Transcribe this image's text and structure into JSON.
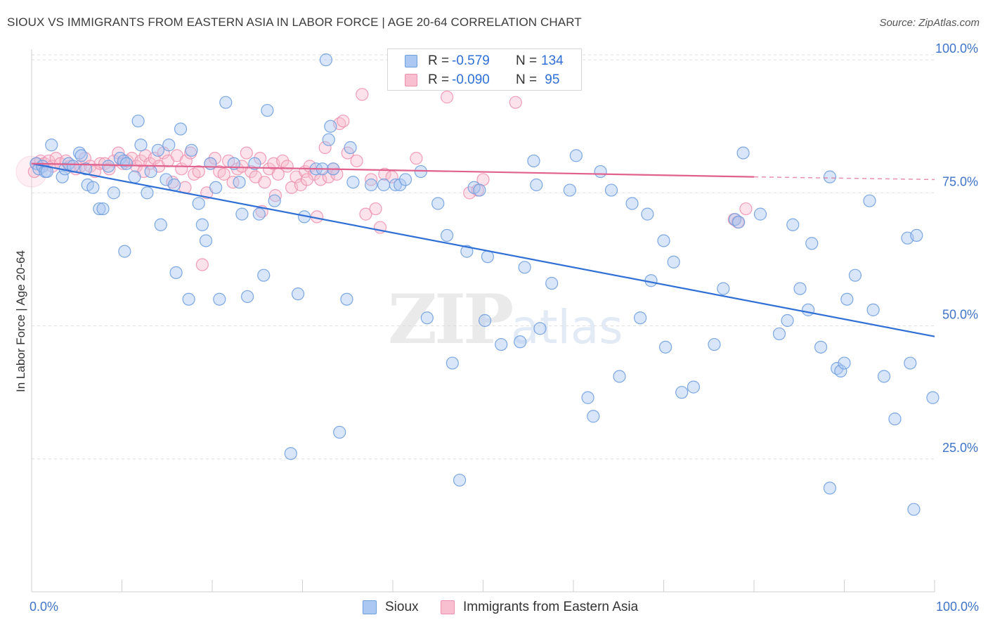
{
  "header": {
    "title": "SIOUX VS IMMIGRANTS FROM EASTERN ASIA IN LABOR FORCE | AGE 20-64 CORRELATION CHART",
    "source": "Source: ZipAtlas.com"
  },
  "watermark": {
    "zip": "ZIP",
    "atlas": "atlas"
  },
  "legend_top": {
    "rows": [
      {
        "r_label": "R =",
        "r_value": "-0.579",
        "n_label": "N =",
        "n_value": "134"
      },
      {
        "r_label": "R =",
        "r_value": "-0.090",
        "n_label": "N =",
        "n_value": " 95"
      }
    ]
  },
  "legend_bottom": {
    "items": [
      {
        "label": "Sioux"
      },
      {
        "label": "Immigrants from Eastern Asia"
      }
    ]
  },
  "colors": {
    "sioux_fill": "#aac8f2",
    "sioux_stroke": "#6f9ee0",
    "sioux_line": "#2f6fd6",
    "asia_fill": "#f8bfd0",
    "asia_stroke": "#ee8ead",
    "asia_line": "#e0618d",
    "grid": "#dddddd",
    "tick_text": "#3f74c9"
  },
  "chart_data": {
    "type": "scatter",
    "title": "SIOUX VS IMMIGRANTS FROM EASTERN ASIA IN LABOR FORCE | AGE 20-64 CORRELATION CHART",
    "xlabel": "",
    "ylabel": "In Labor Force | Age 20-64",
    "xlim": [
      0,
      100
    ],
    "ylim": [
      0,
      102
    ],
    "x_tick_labels": [
      "0.0%",
      "100.0%"
    ],
    "y_ticks": [
      25,
      50,
      75,
      100
    ],
    "y_tick_labels": [
      "25.0%",
      "50.0%",
      "75.0%",
      "100.0%"
    ],
    "grid": true,
    "legend_position": "top-center",
    "series": [
      {
        "name": "Sioux",
        "r": -0.579,
        "n": 134,
        "trend": {
          "x": [
            0,
            100
          ],
          "y": [
            80.5,
            48.0
          ]
        },
        "points": [
          [
            0.5,
            80.5
          ],
          [
            0.8,
            79.5
          ],
          [
            1.2,
            80.0
          ],
          [
            1.5,
            79.0
          ],
          [
            2.2,
            84.0
          ],
          [
            3.4,
            78.0
          ],
          [
            3.7,
            79.5
          ],
          [
            4.1,
            80.5
          ],
          [
            4.6,
            80.0
          ],
          [
            5.3,
            82.5
          ],
          [
            5.5,
            82.0
          ],
          [
            6.2,
            76.5
          ],
          [
            6.8,
            76.0
          ],
          [
            7.5,
            72.0
          ],
          [
            7.9,
            72.0
          ],
          [
            8.5,
            80.0
          ],
          [
            9.1,
            75.0
          ],
          [
            9.8,
            81.5
          ],
          [
            10.2,
            81.0
          ],
          [
            10.5,
            80.5
          ],
          [
            10.3,
            64.0
          ],
          [
            11.4,
            78.0
          ],
          [
            11.8,
            88.5
          ],
          [
            12.1,
            84.0
          ],
          [
            12.8,
            75.0
          ],
          [
            13.2,
            79.0
          ],
          [
            14.0,
            83.0
          ],
          [
            14.3,
            69.0
          ],
          [
            14.9,
            77.5
          ],
          [
            15.2,
            84.0
          ],
          [
            15.8,
            76.5
          ],
          [
            16.0,
            60.0
          ],
          [
            16.5,
            87.0
          ],
          [
            17.4,
            55.0
          ],
          [
            17.7,
            83.0
          ],
          [
            18.5,
            73.0
          ],
          [
            18.9,
            69.0
          ],
          [
            19.3,
            66.0
          ],
          [
            19.8,
            80.5
          ],
          [
            20.4,
            76.0
          ],
          [
            20.8,
            55.0
          ],
          [
            21.5,
            92.0
          ],
          [
            22.4,
            80.5
          ],
          [
            23.0,
            77.0
          ],
          [
            23.3,
            71.0
          ],
          [
            23.9,
            55.5
          ],
          [
            24.7,
            80.5
          ],
          [
            25.2,
            71.0
          ],
          [
            25.7,
            59.5
          ],
          [
            26.1,
            90.5
          ],
          [
            26.9,
            73.5
          ],
          [
            28.7,
            26.0
          ],
          [
            29.5,
            56.0
          ],
          [
            30.2,
            70.5
          ],
          [
            31.5,
            79.5
          ],
          [
            32.2,
            79.5
          ],
          [
            32.6,
            100.0
          ],
          [
            32.9,
            85.0
          ],
          [
            33.1,
            87.5
          ],
          [
            33.4,
            79.5
          ],
          [
            34.1,
            30.0
          ],
          [
            34.9,
            55.0
          ],
          [
            35.3,
            83.5
          ],
          [
            35.6,
            77.0
          ],
          [
            37.6,
            76.5
          ],
          [
            39.0,
            76.5
          ],
          [
            40.3,
            76.5
          ],
          [
            40.8,
            76.5
          ],
          [
            41.4,
            77.5
          ],
          [
            43.1,
            79.0
          ],
          [
            43.8,
            51.5
          ],
          [
            45.0,
            73.0
          ],
          [
            46.0,
            67.0
          ],
          [
            46.6,
            43.0
          ],
          [
            47.4,
            21.0
          ],
          [
            48.2,
            64.0
          ],
          [
            49.0,
            76.0
          ],
          [
            49.6,
            75.5
          ],
          [
            50.2,
            51.0
          ],
          [
            50.5,
            63.0
          ],
          [
            52.0,
            46.5
          ],
          [
            54.1,
            47.0
          ],
          [
            54.6,
            61.0
          ],
          [
            55.6,
            81.0
          ],
          [
            55.9,
            76.5
          ],
          [
            56.3,
            49.5
          ],
          [
            57.6,
            58.0
          ],
          [
            59.6,
            75.5
          ],
          [
            60.3,
            82.0
          ],
          [
            61.6,
            36.5
          ],
          [
            62.2,
            33.0
          ],
          [
            63.0,
            79.0
          ],
          [
            64.2,
            75.5
          ],
          [
            65.1,
            40.5
          ],
          [
            66.5,
            73.0
          ],
          [
            67.4,
            51.5
          ],
          [
            68.2,
            71.0
          ],
          [
            68.6,
            58.5
          ],
          [
            70.0,
            66.0
          ],
          [
            70.2,
            46.0
          ],
          [
            71.1,
            62.0
          ],
          [
            72.0,
            37.5
          ],
          [
            73.3,
            38.5
          ],
          [
            75.6,
            46.5
          ],
          [
            76.6,
            57.0
          ],
          [
            77.9,
            70.0
          ],
          [
            78.3,
            69.5
          ],
          [
            78.8,
            82.5
          ],
          [
            80.7,
            71.0
          ],
          [
            82.8,
            48.5
          ],
          [
            83.7,
            51.0
          ],
          [
            84.3,
            69.0
          ],
          [
            85.1,
            57.0
          ],
          [
            86.0,
            53.0
          ],
          [
            86.4,
            65.5
          ],
          [
            87.4,
            46.0
          ],
          [
            88.4,
            78.0
          ],
          [
            89.2,
            42.0
          ],
          [
            89.6,
            41.5
          ],
          [
            90.0,
            43.0
          ],
          [
            88.4,
            19.5
          ],
          [
            90.3,
            55.0
          ],
          [
            91.2,
            59.5
          ],
          [
            92.8,
            73.5
          ],
          [
            93.2,
            53.0
          ],
          [
            94.4,
            40.5
          ],
          [
            95.6,
            32.5
          ],
          [
            97.0,
            66.5
          ],
          [
            97.3,
            43.0
          ],
          [
            97.7,
            15.5
          ],
          [
            98.0,
            67.0
          ],
          [
            99.8,
            36.5
          ],
          [
            1.7,
            79.0
          ],
          [
            6.0,
            79.5
          ]
        ]
      },
      {
        "name": "Immigrants from Eastern Asia",
        "r": -0.09,
        "n": 95,
        "trend": {
          "x": [
            0,
            80
          ],
          "y": [
            80.5,
            78.0
          ],
          "dashed_extension": {
            "x": [
              80,
              100
            ],
            "y": [
              78.0,
              77.5
            ]
          }
        },
        "points": [
          [
            0.3,
            79.0
          ],
          [
            0.6,
            80.5
          ],
          [
            1.0,
            81.0
          ],
          [
            1.4,
            80.5
          ],
          [
            1.9,
            81.0
          ],
          [
            2.3,
            80.0
          ],
          [
            2.7,
            81.5
          ],
          [
            3.2,
            80.5
          ],
          [
            3.8,
            81.0
          ],
          [
            4.3,
            80.0
          ],
          [
            4.9,
            79.5
          ],
          [
            5.4,
            80.0
          ],
          [
            5.9,
            81.5
          ],
          [
            6.5,
            80.0
          ],
          [
            7.0,
            79.0
          ],
          [
            7.6,
            80.5
          ],
          [
            8.1,
            80.5
          ],
          [
            8.6,
            79.5
          ],
          [
            9.1,
            81.0
          ],
          [
            9.6,
            82.5
          ],
          [
            10.1,
            80.5
          ],
          [
            10.6,
            81.0
          ],
          [
            11.1,
            81.5
          ],
          [
            11.6,
            80.0
          ],
          [
            12.1,
            81.0
          ],
          [
            12.6,
            82.0
          ],
          [
            13.1,
            80.5
          ],
          [
            13.6,
            81.5
          ],
          [
            14.1,
            80.0
          ],
          [
            14.6,
            82.5
          ],
          [
            15.1,
            81.0
          ],
          [
            15.6,
            77.0
          ],
          [
            16.1,
            82.0
          ],
          [
            16.6,
            79.5
          ],
          [
            17.1,
            81.0
          ],
          [
            17.6,
            82.5
          ],
          [
            18.0,
            78.5
          ],
          [
            18.5,
            79.0
          ],
          [
            18.9,
            61.5
          ],
          [
            19.4,
            75.0
          ],
          [
            19.8,
            80.5
          ],
          [
            20.3,
            81.5
          ],
          [
            20.8,
            79.0
          ],
          [
            21.3,
            78.5
          ],
          [
            21.8,
            81.0
          ],
          [
            22.3,
            77.0
          ],
          [
            22.8,
            79.5
          ],
          [
            23.3,
            80.0
          ],
          [
            23.8,
            82.5
          ],
          [
            24.3,
            79.0
          ],
          [
            24.8,
            78.0
          ],
          [
            25.3,
            81.5
          ],
          [
            25.8,
            77.0
          ],
          [
            26.3,
            79.5
          ],
          [
            26.8,
            80.5
          ],
          [
            27.3,
            78.5
          ],
          [
            27.8,
            81.0
          ],
          [
            28.3,
            80.0
          ],
          [
            28.8,
            76.0
          ],
          [
            29.3,
            78.0
          ],
          [
            29.8,
            76.5
          ],
          [
            30.3,
            79.0
          ],
          [
            30.8,
            80.0
          ],
          [
            31.3,
            78.5
          ],
          [
            31.6,
            70.5
          ],
          [
            32.0,
            77.5
          ],
          [
            32.5,
            83.5
          ],
          [
            32.9,
            78.0
          ],
          [
            33.4,
            79.5
          ],
          [
            33.8,
            78.5
          ],
          [
            34.1,
            88.0
          ],
          [
            34.5,
            88.5
          ],
          [
            35.0,
            82.5
          ],
          [
            36.0,
            81.0
          ],
          [
            36.6,
            93.5
          ],
          [
            37.0,
            71.0
          ],
          [
            37.6,
            77.5
          ],
          [
            38.1,
            72.0
          ],
          [
            38.6,
            68.5
          ],
          [
            39.1,
            78.5
          ],
          [
            39.9,
            78.0
          ],
          [
            42.6,
            81.5
          ],
          [
            46.0,
            93.0
          ],
          [
            48.5,
            75.0
          ],
          [
            49.4,
            75.5
          ],
          [
            50.0,
            77.5
          ],
          [
            53.6,
            92.0
          ],
          [
            77.8,
            70.0
          ],
          [
            78.2,
            69.5
          ],
          [
            79.1,
            72.0
          ],
          [
            27.0,
            74.5
          ],
          [
            30.5,
            77.5
          ],
          [
            25.5,
            71.5
          ],
          [
            17.0,
            76.0
          ],
          [
            12.4,
            79.0
          ]
        ]
      }
    ]
  }
}
